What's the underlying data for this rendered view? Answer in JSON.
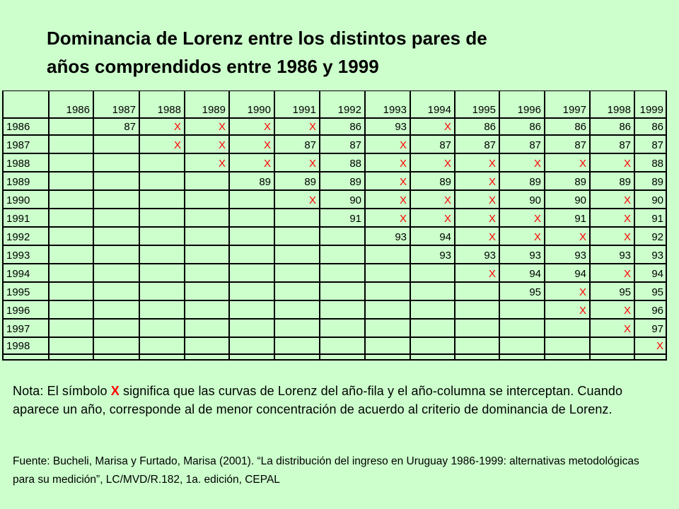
{
  "title": {
    "line1": "Dominancia de Lorenz entre los distintos pares de",
    "line2": "años comprendidos entre 1986 y 1999"
  },
  "table": {
    "columns": [
      "1986",
      "1987",
      "1988",
      "1989",
      "1990",
      "1991",
      "1992",
      "1993",
      "1994",
      "1995",
      "1996",
      "1997",
      "1998",
      "1999"
    ],
    "rows": [
      {
        "label": "1986",
        "cells": [
          "",
          "87",
          "X",
          "X",
          "X",
          "X",
          "86",
          "93",
          "X",
          "86",
          "86",
          "86",
          "86",
          "86"
        ]
      },
      {
        "label": "1987",
        "cells": [
          "",
          "",
          "X",
          "X",
          "X",
          "87",
          "87",
          "X",
          "87",
          "87",
          "87",
          "87",
          "87",
          "87"
        ]
      },
      {
        "label": "1988",
        "cells": [
          "",
          "",
          "",
          "X",
          "X",
          "X",
          "88",
          "X",
          "X",
          "X",
          "X",
          "X",
          "X",
          "88"
        ]
      },
      {
        "label": "1989",
        "cells": [
          "",
          "",
          "",
          "",
          "89",
          "89",
          "89",
          "X",
          "89",
          "X",
          "89",
          "89",
          "89",
          "89"
        ]
      },
      {
        "label": "1990",
        "cells": [
          "",
          "",
          "",
          "",
          "",
          "X",
          "90",
          "X",
          "X",
          "X",
          "90",
          "90",
          "X",
          "90"
        ]
      },
      {
        "label": "1991",
        "cells": [
          "",
          "",
          "",
          "",
          "",
          "",
          "91",
          "X",
          "X",
          "X",
          "X",
          "91",
          "X",
          "91"
        ]
      },
      {
        "label": "1992",
        "cells": [
          "",
          "",
          "",
          "",
          "",
          "",
          "",
          "93",
          "94",
          "X",
          "X",
          "X",
          "X",
          "92"
        ]
      },
      {
        "label": "1993",
        "cells": [
          "",
          "",
          "",
          "",
          "",
          "",
          "",
          "",
          "93",
          "93",
          "93",
          "93",
          "93",
          "93"
        ]
      },
      {
        "label": "1994",
        "cells": [
          "",
          "",
          "",
          "",
          "",
          "",
          "",
          "",
          "",
          "X",
          "94",
          "94",
          "X",
          "94"
        ]
      },
      {
        "label": "1995",
        "cells": [
          "",
          "",
          "",
          "",
          "",
          "",
          "",
          "",
          "",
          "",
          "95",
          "X",
          "95",
          "95"
        ]
      },
      {
        "label": "1996",
        "cells": [
          "",
          "",
          "",
          "",
          "",
          "",
          "",
          "",
          "",
          "",
          "",
          "X",
          "X",
          "96"
        ]
      },
      {
        "label": "1997",
        "cells": [
          "",
          "",
          "",
          "",
          "",
          "",
          "",
          "",
          "",
          "",
          "",
          "",
          "X",
          "97"
        ]
      },
      {
        "label": "1998",
        "cells": [
          "",
          "",
          "",
          "",
          "",
          "",
          "",
          "",
          "",
          "",
          "",
          "",
          "",
          "X"
        ]
      }
    ]
  },
  "note": {
    "prefix": "Nota: El símbolo ",
    "symbol": "X",
    "suffix": " significa que las curvas de Lorenz del año-fila y el año-columna se interceptan. Cuando aparece un año, corresponde al de menor concentración de acuerdo al criterio de dominancia de Lorenz."
  },
  "source": "Fuente: Bucheli, Marisa y Furtado, Marisa (2001). “La distribución del ingreso en Uruguay 1986-1999: alternativas metodológicas para su medición”, LC/MVD/R.182, 1a. edición, CEPAL",
  "colors": {
    "background": "#ccffcc",
    "x_symbol": "#ff0000"
  }
}
